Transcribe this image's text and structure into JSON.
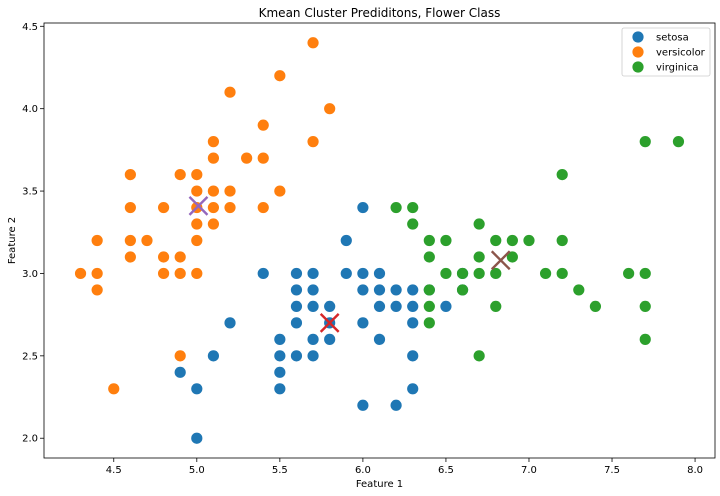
{
  "chart_data": {
    "type": "scatter",
    "title": "Kmean Cluster Prediditons, Flower Class",
    "xlabel": "Feature 1",
    "ylabel": "Feature 2",
    "xlim": [
      4.08,
      8.12
    ],
    "ylim": [
      1.88,
      4.52
    ],
    "xticks": [
      "4.5",
      "5.0",
      "5.5",
      "6.0",
      "6.5",
      "7.0",
      "7.5",
      "8.0"
    ],
    "yticks": [
      "2.0",
      "2.5",
      "3.0",
      "3.5",
      "4.0",
      "4.5"
    ],
    "legend_position": "top-right",
    "grid": false,
    "series": [
      {
        "name": "setosa",
        "color": "#1f77b4",
        "points": [
          [
            4.9,
            2.4
          ],
          [
            5.0,
            2.3
          ],
          [
            5.0,
            2.0
          ],
          [
            5.1,
            2.5
          ],
          [
            5.2,
            2.7
          ],
          [
            5.4,
            3.0
          ],
          [
            5.5,
            2.3
          ],
          [
            5.5,
            2.4
          ],
          [
            5.5,
            2.5
          ],
          [
            5.5,
            2.6
          ],
          [
            5.6,
            2.5
          ],
          [
            5.6,
            2.7
          ],
          [
            5.6,
            2.8
          ],
          [
            5.6,
            2.9
          ],
          [
            5.6,
            3.0
          ],
          [
            5.7,
            2.5
          ],
          [
            5.7,
            2.6
          ],
          [
            5.7,
            2.8
          ],
          [
            5.7,
            2.9
          ],
          [
            5.7,
            3.0
          ],
          [
            5.8,
            2.6
          ],
          [
            5.8,
            2.7
          ],
          [
            5.8,
            2.8
          ],
          [
            5.9,
            3.0
          ],
          [
            5.9,
            3.2
          ],
          [
            6.0,
            2.2
          ],
          [
            6.0,
            2.7
          ],
          [
            6.0,
            2.9
          ],
          [
            6.0,
            3.0
          ],
          [
            6.0,
            3.4
          ],
          [
            6.1,
            2.6
          ],
          [
            6.1,
            2.8
          ],
          [
            6.1,
            2.9
          ],
          [
            6.1,
            3.0
          ],
          [
            6.2,
            2.2
          ],
          [
            6.2,
            2.8
          ],
          [
            6.2,
            2.9
          ],
          [
            6.3,
            2.3
          ],
          [
            6.3,
            2.5
          ],
          [
            6.3,
            2.7
          ],
          [
            6.3,
            2.8
          ],
          [
            6.3,
            2.9
          ],
          [
            6.4,
            2.9
          ],
          [
            6.5,
            2.8
          ],
          [
            6.6,
            2.9
          ],
          [
            6.6,
            3.0
          ]
        ]
      },
      {
        "name": "versicolor",
        "color": "#ff7f0e",
        "points": [
          [
            4.3,
            3.0
          ],
          [
            4.4,
            2.9
          ],
          [
            4.4,
            3.0
          ],
          [
            4.4,
            3.2
          ],
          [
            4.5,
            2.3
          ],
          [
            4.6,
            3.1
          ],
          [
            4.6,
            3.2
          ],
          [
            4.6,
            3.4
          ],
          [
            4.6,
            3.6
          ],
          [
            4.7,
            3.2
          ],
          [
            4.8,
            3.0
          ],
          [
            4.8,
            3.1
          ],
          [
            4.8,
            3.4
          ],
          [
            4.9,
            2.5
          ],
          [
            4.9,
            3.0
          ],
          [
            4.9,
            3.1
          ],
          [
            4.9,
            3.6
          ],
          [
            5.0,
            3.0
          ],
          [
            5.0,
            3.2
          ],
          [
            5.0,
            3.3
          ],
          [
            5.0,
            3.4
          ],
          [
            5.0,
            3.5
          ],
          [
            5.0,
            3.6
          ],
          [
            5.1,
            3.3
          ],
          [
            5.1,
            3.4
          ],
          [
            5.1,
            3.5
          ],
          [
            5.1,
            3.7
          ],
          [
            5.1,
            3.8
          ],
          [
            5.2,
            3.4
          ],
          [
            5.2,
            3.5
          ],
          [
            5.2,
            4.1
          ],
          [
            5.3,
            3.7
          ],
          [
            5.4,
            3.4
          ],
          [
            5.4,
            3.7
          ],
          [
            5.4,
            3.9
          ],
          [
            5.5,
            3.5
          ],
          [
            5.5,
            4.2
          ],
          [
            5.7,
            3.8
          ],
          [
            5.7,
            4.4
          ],
          [
            5.8,
            4.0
          ]
        ]
      },
      {
        "name": "virginica",
        "color": "#2ca02c",
        "points": [
          [
            6.2,
            3.4
          ],
          [
            6.3,
            3.3
          ],
          [
            6.3,
            3.4
          ],
          [
            6.4,
            2.7
          ],
          [
            6.4,
            2.8
          ],
          [
            6.4,
            2.9
          ],
          [
            6.4,
            3.1
          ],
          [
            6.4,
            3.2
          ],
          [
            6.5,
            3.0
          ],
          [
            6.5,
            3.2
          ],
          [
            6.6,
            3.0
          ],
          [
            6.6,
            2.9
          ],
          [
            6.7,
            2.5
          ],
          [
            6.7,
            3.0
          ],
          [
            6.7,
            3.1
          ],
          [
            6.7,
            3.3
          ],
          [
            6.8,
            2.8
          ],
          [
            6.8,
            3.0
          ],
          [
            6.8,
            3.2
          ],
          [
            6.9,
            3.1
          ],
          [
            6.9,
            3.2
          ],
          [
            7.0,
            3.2
          ],
          [
            7.1,
            3.0
          ],
          [
            7.2,
            3.0
          ],
          [
            7.2,
            3.2
          ],
          [
            7.2,
            3.6
          ],
          [
            7.3,
            2.9
          ],
          [
            7.4,
            2.8
          ],
          [
            7.6,
            3.0
          ],
          [
            7.7,
            2.6
          ],
          [
            7.7,
            2.8
          ],
          [
            7.7,
            3.0
          ],
          [
            7.7,
            3.8
          ],
          [
            7.9,
            3.8
          ]
        ]
      }
    ],
    "centroids": [
      {
        "x": 5.01,
        "y": 3.41,
        "color": "#9467bd"
      },
      {
        "x": 5.8,
        "y": 2.7,
        "color": "#d62728"
      },
      {
        "x": 6.83,
        "y": 3.08,
        "color": "#8c564b"
      }
    ]
  }
}
